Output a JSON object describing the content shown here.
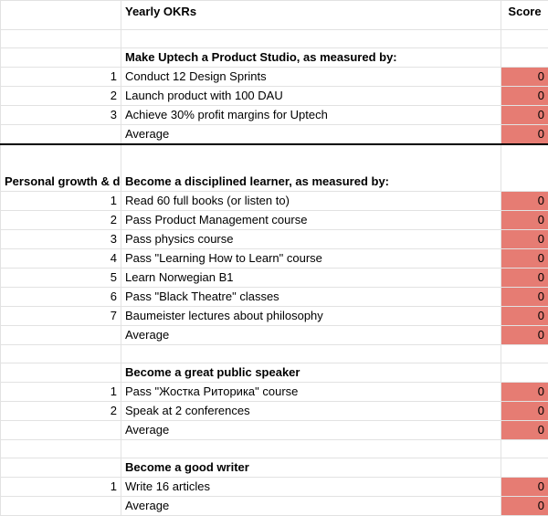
{
  "header": {
    "title": "Yearly OKRs",
    "score_label": "Score"
  },
  "rows": [
    {
      "kind": "spacer"
    },
    {
      "kind": "objective",
      "text": "Make Uptech a Product Studio, as measured by:"
    },
    {
      "kind": "kr",
      "n": "1",
      "text": "Conduct 12 Design Sprints",
      "score": "0"
    },
    {
      "kind": "kr",
      "n": "2",
      "text": "Launch product with 100 DAU",
      "score": "0"
    },
    {
      "kind": "kr",
      "n": "3",
      "text": "Achieve 30% profit margins for Uptech",
      "score": "0"
    },
    {
      "kind": "avg",
      "text": "Average",
      "score": "0"
    },
    {
      "kind": "objective",
      "section": "Personal growth & development, spiritual",
      "sep": true,
      "tall": true,
      "text": "Become a disciplined learner, as measured by:"
    },
    {
      "kind": "kr",
      "n": "1",
      "text": "Read 60 full books (or listen to)",
      "score": "0"
    },
    {
      "kind": "kr",
      "n": "2",
      "text": "Pass Product Management course",
      "score": "0"
    },
    {
      "kind": "kr",
      "n": "3",
      "text": "Pass physics course",
      "score": "0"
    },
    {
      "kind": "kr",
      "n": "4",
      "text": "Pass \"Learning How to Learn\" course",
      "score": "0"
    },
    {
      "kind": "kr",
      "n": "5",
      "text": "Learn Norwegian B1",
      "score": "0"
    },
    {
      "kind": "kr",
      "n": "6",
      "text": "Pass \"Black Theatre\" classes",
      "score": "0"
    },
    {
      "kind": "kr",
      "n": "7",
      "text": "Baumeister lectures about philosophy",
      "score": "0"
    },
    {
      "kind": "avg",
      "text": "Average",
      "score": "0"
    },
    {
      "kind": "spacer"
    },
    {
      "kind": "objective",
      "text": "Become a great public speaker"
    },
    {
      "kind": "kr",
      "n": "1",
      "text": "Pass \"Жостка Риторика\" course",
      "score": "0"
    },
    {
      "kind": "kr",
      "n": "2",
      "text": "Speak at 2 conferences",
      "score": "0"
    },
    {
      "kind": "avg",
      "text": "Average",
      "score": "0"
    },
    {
      "kind": "spacer"
    },
    {
      "kind": "objective",
      "text": "Become a good writer"
    },
    {
      "kind": "kr",
      "n": "1",
      "text": "Write 16 articles",
      "score": "0"
    },
    {
      "kind": "avg",
      "text": "Average",
      "score": "0"
    }
  ],
  "colors": {
    "score_fill": "#e67c73",
    "grid": "#e2e2e2"
  }
}
